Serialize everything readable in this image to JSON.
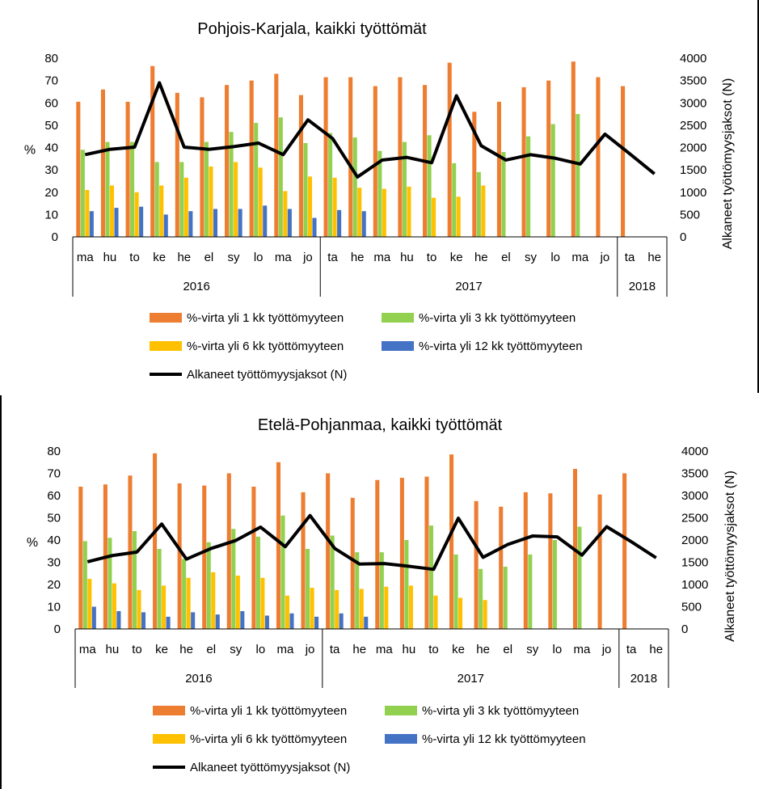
{
  "colors": {
    "over1": "#ED7D31",
    "over3": "#92D050",
    "over6": "#FFC000",
    "over12": "#4472C4",
    "line": "#000000",
    "axis": "#000000"
  },
  "chart_data": [
    {
      "type": "bar",
      "title": "Pohjois-Karjala, kaikki työttömät",
      "ylabel": "%",
      "y2label": "Alkaneet työttömyysjaksot (N)",
      "ylim": [
        0,
        80
      ],
      "yticks": [
        0,
        10,
        20,
        30,
        40,
        50,
        60,
        70,
        80
      ],
      "y2lim": [
        0,
        4000
      ],
      "y2ticks": [
        0,
        500,
        1000,
        1500,
        2000,
        2500,
        3000,
        3500,
        4000
      ],
      "categories": [
        "ma",
        "hu",
        "to",
        "ke",
        "he",
        "el",
        "sy",
        "lo",
        "ma",
        "jo",
        "ta",
        "he",
        "ma",
        "hu",
        "to",
        "ke",
        "he",
        "el",
        "sy",
        "lo",
        "ma",
        "jo",
        "ta",
        "he"
      ],
      "groups": [
        {
          "label": "2016",
          "count": 10
        },
        {
          "label": "2017",
          "count": 12
        },
        {
          "label": "2018",
          "count": 2
        }
      ],
      "legend_position": "bottom",
      "series": [
        {
          "name": "%-virta yli 1 kk työttömyyteen",
          "kind": "bar",
          "color_key": "over1",
          "values": [
            60.5,
            66,
            60.5,
            76.5,
            64.5,
            62.5,
            68,
            70,
            73,
            63.5,
            71.5,
            71.5,
            67.5,
            71.5,
            68,
            78,
            56,
            60.5,
            67,
            70,
            78.5,
            71.5,
            67.5,
            null
          ]
        },
        {
          "name": "%-virta yli 3 kk työttömyyteen",
          "kind": "bar",
          "color_key": "over3",
          "values": [
            39,
            42.5,
            42.5,
            33.5,
            33.5,
            42.5,
            47,
            51,
            53.5,
            42,
            46.5,
            44.5,
            38.5,
            42.5,
            45.5,
            33,
            29,
            38,
            45,
            50.5,
            55,
            null,
            null,
            null
          ]
        },
        {
          "name": "%-virta yli 6 kk työttömyyteen",
          "kind": "bar",
          "color_key": "over6",
          "values": [
            21,
            23,
            20,
            23,
            26.5,
            31.5,
            33.5,
            31,
            20.5,
            27,
            26.5,
            22,
            21.5,
            22.5,
            17.5,
            18,
            23,
            null,
            null,
            null,
            null,
            null,
            null,
            null
          ]
        },
        {
          "name": "%-virta yli 12 kk työttömyyteen",
          "kind": "bar",
          "color_key": "over12",
          "values": [
            11.5,
            13,
            13.5,
            10,
            11.5,
            12.5,
            12.5,
            14,
            12.5,
            8.5,
            12,
            11.5,
            null,
            null,
            null,
            null,
            null,
            null,
            null,
            null,
            null,
            null,
            null,
            null
          ]
        },
        {
          "name": "Alkaneet työttömyysjaksot (N)",
          "kind": "line",
          "axis": "right",
          "color_key": "line",
          "values": [
            1840,
            1960,
            2010,
            3450,
            2010,
            1960,
            2020,
            2100,
            1840,
            2620,
            2200,
            1340,
            1720,
            1780,
            1660,
            3160,
            2040,
            1720,
            1840,
            1760,
            1630,
            2300,
            1860,
            1410
          ]
        }
      ]
    },
    {
      "type": "bar",
      "title": "Etelä-Pohjanmaa, kaikki työttömät",
      "ylabel": "%",
      "y2label": "Alkaneet työttömyysjaksot (N)",
      "ylim": [
        0,
        80
      ],
      "yticks": [
        0,
        10,
        20,
        30,
        40,
        50,
        60,
        70,
        80
      ],
      "y2lim": [
        0,
        4000
      ],
      "y2ticks": [
        0,
        500,
        1000,
        1500,
        2000,
        2500,
        3000,
        3500,
        4000
      ],
      "categories": [
        "ma",
        "hu",
        "to",
        "ke",
        "he",
        "el",
        "sy",
        "lo",
        "ma",
        "jo",
        "ta",
        "he",
        "ma",
        "hu",
        "to",
        "ke",
        "he",
        "el",
        "sy",
        "lo",
        "ma",
        "jo",
        "ta",
        "he"
      ],
      "groups": [
        {
          "label": "2016",
          "count": 10
        },
        {
          "label": "2017",
          "count": 12
        },
        {
          "label": "2018",
          "count": 2
        }
      ],
      "legend_position": "bottom",
      "series": [
        {
          "name": "%-virta yli 1 kk työttömyyteen",
          "kind": "bar",
          "color_key": "over1",
          "values": [
            64,
            65,
            69,
            79,
            65.5,
            64.5,
            70,
            64,
            75,
            61.5,
            70,
            59,
            67,
            68,
            68.5,
            78.5,
            57.5,
            55,
            61.5,
            61,
            72,
            60.5,
            70,
            null
          ]
        },
        {
          "name": "%-virta yli 3 kk työttömyyteen",
          "kind": "bar",
          "color_key": "over3",
          "values": [
            39.5,
            41,
            44,
            36,
            31.5,
            39,
            45,
            41.5,
            51,
            36,
            42,
            34.5,
            34.5,
            40,
            46.5,
            33.5,
            27,
            28,
            33.5,
            40,
            46,
            null,
            null,
            null
          ]
        },
        {
          "name": "%-virta yli 6 kk työttömyyteen",
          "kind": "bar",
          "color_key": "over6",
          "values": [
            22.5,
            20.5,
            17.5,
            19.5,
            23,
            25.5,
            24,
            23,
            15,
            18.5,
            17.5,
            18,
            19,
            19.5,
            15,
            14,
            13,
            null,
            null,
            null,
            null,
            null,
            null,
            null
          ]
        },
        {
          "name": "%-virta yli 12 kk työttömyyteen",
          "kind": "bar",
          "color_key": "over12",
          "values": [
            10,
            8,
            7.5,
            5.5,
            7.5,
            6.5,
            8,
            6,
            7,
            5.5,
            7,
            5.5,
            null,
            null,
            null,
            null,
            null,
            null,
            null,
            null,
            null,
            null,
            null,
            null
          ]
        },
        {
          "name": "Alkaneet työttömyysjaksot (N)",
          "kind": "line",
          "axis": "right",
          "color_key": "line",
          "values": [
            1510,
            1650,
            1730,
            2360,
            1570,
            1810,
            1990,
            2290,
            1850,
            2550,
            1810,
            1460,
            1470,
            1410,
            1340,
            2490,
            1610,
            1900,
            2090,
            2070,
            1660,
            2300,
            1960,
            1600
          ]
        }
      ]
    }
  ]
}
